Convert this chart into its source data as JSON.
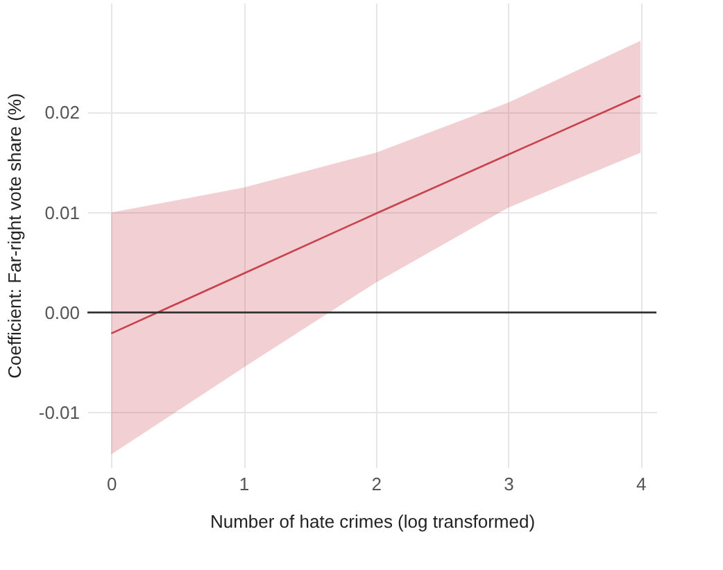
{
  "chart_data": {
    "type": "line",
    "xlabel": "Number of hate crimes (log transformed)",
    "ylabel": "Coefficient: Far-right vote share (%)",
    "x": [
      0,
      1,
      2,
      3,
      4
    ],
    "series": [
      {
        "color": "#c8414b",
        "values": [
          -0.0021,
          0.0039,
          0.0099,
          0.0158,
          0.0217
        ],
        "lower": [
          -0.0142,
          -0.0055,
          0.003,
          0.0105,
          0.016
        ],
        "upper": [
          0.01,
          0.0125,
          0.016,
          0.021,
          0.0272
        ]
      }
    ],
    "xlim": [
      -0.18,
      4.12
    ],
    "xticks": [
      0,
      1,
      2,
      3,
      4
    ],
    "ylim": [
      -0.0155,
      0.031
    ],
    "yticks": [
      {
        "value": -0.01,
        "label": "-0.01"
      },
      {
        "value": 0,
        "label": "0.00"
      },
      {
        "value": 0.01,
        "label": "0.01"
      },
      {
        "value": 0.02,
        "label": "0.02"
      }
    ],
    "ref_lines": [
      {
        "axis": "y",
        "value": 0,
        "color": "#333333"
      }
    ],
    "grid": true,
    "marker": "none",
    "line_style": "solid"
  }
}
